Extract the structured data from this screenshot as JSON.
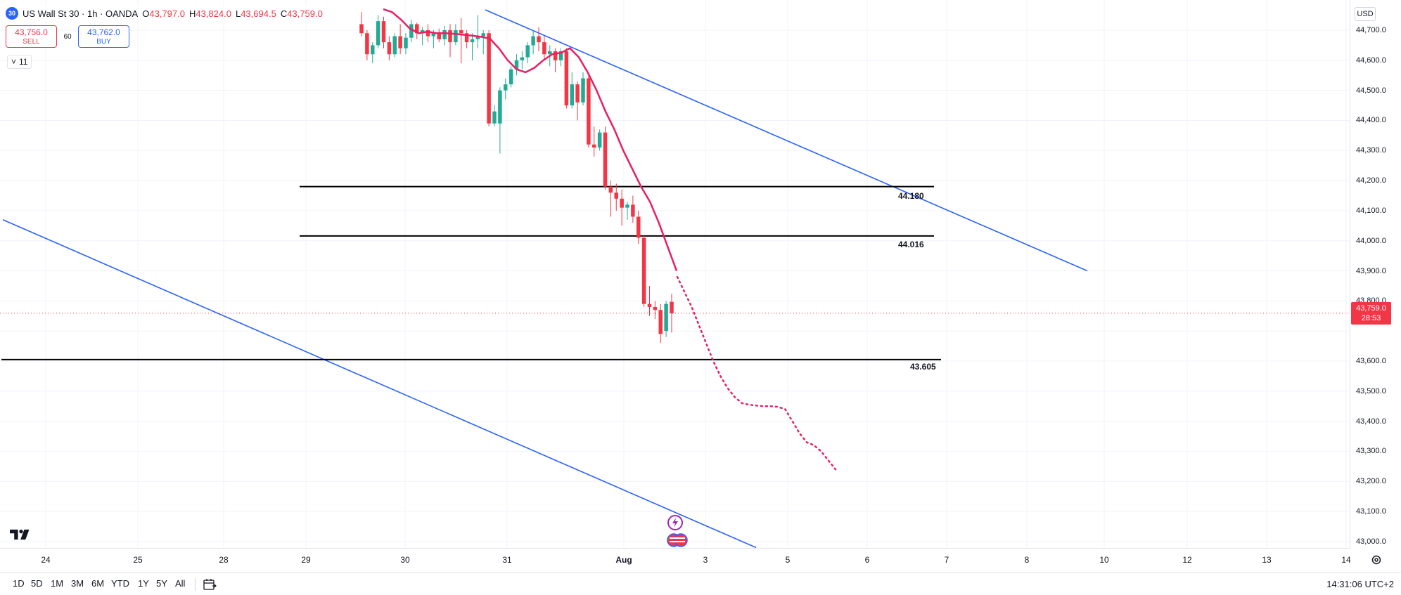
{
  "legend": {
    "logo_text": "30",
    "title": "US Wall St 30 · 1h · OANDA",
    "o_label": "O",
    "o_value": "43,797.0",
    "h_label": "H",
    "h_value": "43,824.0",
    "l_label": "L",
    "l_value": "43,694.5",
    "c_label": "C",
    "c_value": "43,759.0"
  },
  "trade": {
    "sell_price": "43,756.0",
    "sell_label": "SELL",
    "spread": "60",
    "buy_price": "43,762.0",
    "buy_label": "BUY"
  },
  "indicators_toggle": {
    "chevron": "˅",
    "count": "11"
  },
  "price_axis": {
    "currency": "USD",
    "ticks": [
      "44,700.0",
      "44,600.0",
      "44,500.0",
      "44,400.0",
      "44,300.0",
      "44,200.0",
      "44,100.0",
      "44,000.0",
      "43,900.0",
      "43,800.0",
      "43,700.0",
      "43,600.0",
      "43,500.0",
      "43,400.0",
      "43,300.0",
      "43,200.0",
      "43,100.0",
      "43,000.0"
    ],
    "last_price": "43,759.0",
    "countdown": "28:53"
  },
  "time_axis": {
    "ticks": [
      "24",
      "25",
      "28",
      "29",
      "30",
      "31",
      "Aug",
      "3",
      "5",
      "6",
      "7",
      "8",
      "10",
      "12",
      "13",
      "14"
    ]
  },
  "levels": [
    "44.180",
    "44.016",
    "43.605"
  ],
  "bottom_bar": {
    "ranges": [
      "1D",
      "5D",
      "1M",
      "3M",
      "6M",
      "YTD",
      "1Y",
      "5Y",
      "All"
    ],
    "clock": "14:31:06 UTC+2"
  },
  "icons": {
    "settings": "gear-icon",
    "calendar": "calendar-range-icon",
    "logo": "tradingview-logo-icon",
    "events": [
      "lightning-event-icon",
      "us-flag-event-icon"
    ]
  },
  "colors": {
    "up": "#22ab94",
    "down": "#f23645",
    "ema": "#e91e63",
    "channel": "#2962ff",
    "level": "#000000"
  },
  "chart_data": {
    "type": "candlestick",
    "title": "US Wall St 30 · 1h · OANDA",
    "xlabel": "",
    "ylabel": "",
    "ylim": [
      42960,
      44760
    ],
    "grid": true,
    "candles": [
      {
        "t": "Jul 29 21:00",
        "o": 44720,
        "h": 44760,
        "l": 44680,
        "c": 44690
      },
      {
        "t": "Jul 29 22:00",
        "o": 44690,
        "h": 44700,
        "l": 44600,
        "c": 44620
      },
      {
        "t": "Jul 29 23:00",
        "o": 44620,
        "h": 44660,
        "l": 44590,
        "c": 44650
      },
      {
        "t": "Jul 30 00:00",
        "o": 44650,
        "h": 44750,
        "l": 44640,
        "c": 44730
      },
      {
        "t": "Jul 30 01:00",
        "o": 44730,
        "h": 44745,
        "l": 44640,
        "c": 44660
      },
      {
        "t": "Jul 30 02:00",
        "o": 44660,
        "h": 44680,
        "l": 44600,
        "c": 44620
      },
      {
        "t": "Jul 30 03:00",
        "o": 44620,
        "h": 44690,
        "l": 44610,
        "c": 44680
      },
      {
        "t": "Jul 30 04:00",
        "o": 44680,
        "h": 44720,
        "l": 44620,
        "c": 44640
      },
      {
        "t": "Jul 30 05:00",
        "o": 44640,
        "h": 44690,
        "l": 44620,
        "c": 44675
      },
      {
        "t": "Jul 30 06:00",
        "o": 44675,
        "h": 44735,
        "l": 44660,
        "c": 44720
      },
      {
        "t": "Jul 30 07:00",
        "o": 44720,
        "h": 44725,
        "l": 44670,
        "c": 44690
      },
      {
        "t": "Jul 30 08:00",
        "o": 44690,
        "h": 44710,
        "l": 44650,
        "c": 44700
      },
      {
        "t": "Jul 30 09:00",
        "o": 44700,
        "h": 44720,
        "l": 44660,
        "c": 44680
      },
      {
        "t": "Jul 30 10:00",
        "o": 44680,
        "h": 44700,
        "l": 44640,
        "c": 44690
      },
      {
        "t": "Jul 30 11:00",
        "o": 44690,
        "h": 44705,
        "l": 44660,
        "c": 44670
      },
      {
        "t": "Jul 30 12:00",
        "o": 44670,
        "h": 44715,
        "l": 44650,
        "c": 44700
      },
      {
        "t": "Jul 30 13:00",
        "o": 44700,
        "h": 44720,
        "l": 44610,
        "c": 44660
      },
      {
        "t": "Jul 30 14:00",
        "o": 44660,
        "h": 44720,
        "l": 44650,
        "c": 44700
      },
      {
        "t": "Jul 30 15:00",
        "o": 44700,
        "h": 44740,
        "l": 44590,
        "c": 44690
      },
      {
        "t": "Jul 30 16:00",
        "o": 44690,
        "h": 44700,
        "l": 44640,
        "c": 44660
      },
      {
        "t": "Jul 30 17:00",
        "o": 44660,
        "h": 44690,
        "l": 44600,
        "c": 44670
      },
      {
        "t": "Jul 30 18:00",
        "o": 44670,
        "h": 44750,
        "l": 44640,
        "c": 44680
      },
      {
        "t": "Jul 30 19:00",
        "o": 44680,
        "h": 44700,
        "l": 44620,
        "c": 44690
      },
      {
        "t": "Jul 30 20:00",
        "o": 44690,
        "h": 44700,
        "l": 44380,
        "c": 44390
      },
      {
        "t": "Jul 30 21:00",
        "o": 44390,
        "h": 44450,
        "l": 44380,
        "c": 44430
      },
      {
        "t": "Jul 30 22:00",
        "o": 44390,
        "h": 44510,
        "l": 44290,
        "c": 44500
      },
      {
        "t": "Jul 30 23:00",
        "o": 44500,
        "h": 44540,
        "l": 44470,
        "c": 44520
      },
      {
        "t": "Jul 31 00:00",
        "o": 44520,
        "h": 44580,
        "l": 44510,
        "c": 44570
      },
      {
        "t": "Jul 31 01:00",
        "o": 44570,
        "h": 44620,
        "l": 44550,
        "c": 44600
      },
      {
        "t": "Jul 31 02:00",
        "o": 44600,
        "h": 44630,
        "l": 44570,
        "c": 44610
      },
      {
        "t": "Jul 31 03:00",
        "o": 44610,
        "h": 44660,
        "l": 44590,
        "c": 44650
      },
      {
        "t": "Jul 31 04:00",
        "o": 44650,
        "h": 44700,
        "l": 44620,
        "c": 44680
      },
      {
        "t": "Jul 31 05:00",
        "o": 44680,
        "h": 44710,
        "l": 44630,
        "c": 44660
      },
      {
        "t": "Jul 31 06:00",
        "o": 44660,
        "h": 44680,
        "l": 44600,
        "c": 44620
      },
      {
        "t": "Jul 31 07:00",
        "o": 44620,
        "h": 44650,
        "l": 44580,
        "c": 44630
      },
      {
        "t": "Jul 31 08:00",
        "o": 44630,
        "h": 44640,
        "l": 44560,
        "c": 44600
      },
      {
        "t": "Jul 31 09:00",
        "o": 44600,
        "h": 44640,
        "l": 44580,
        "c": 44630
      },
      {
        "t": "Jul 31 10:00",
        "o": 44630,
        "h": 44640,
        "l": 44440,
        "c": 44450
      },
      {
        "t": "Jul 31 11:00",
        "o": 44450,
        "h": 44560,
        "l": 44440,
        "c": 44520
      },
      {
        "t": "Jul 31 12:00",
        "o": 44520,
        "h": 44530,
        "l": 44400,
        "c": 44460
      },
      {
        "t": "Jul 31 13:00",
        "o": 44460,
        "h": 44560,
        "l": 44450,
        "c": 44540
      },
      {
        "t": "Jul 31 14:00",
        "o": 44540,
        "h": 44550,
        "l": 44310,
        "c": 44320
      },
      {
        "t": "Jul 31 15:00",
        "o": 44320,
        "h": 44380,
        "l": 44280,
        "c": 44310
      },
      {
        "t": "Jul 31 16:00",
        "o": 44310,
        "h": 44370,
        "l": 44300,
        "c": 44360
      },
      {
        "t": "Jul 31 17:00",
        "o": 44360,
        "h": 44380,
        "l": 44170,
        "c": 44180
      },
      {
        "t": "Jul 31 18:00",
        "o": 44180,
        "h": 44200,
        "l": 44080,
        "c": 44160
      },
      {
        "t": "Jul 31 19:00",
        "o": 44160,
        "h": 44190,
        "l": 44100,
        "c": 44140
      },
      {
        "t": "Jul 31 20:00",
        "o": 44140,
        "h": 44170,
        "l": 44050,
        "c": 44110
      },
      {
        "t": "Jul 31 21:00",
        "o": 44110,
        "h": 44130,
        "l": 44070,
        "c": 44120
      },
      {
        "t": "Jul 31 22:00",
        "o": 44120,
        "h": 44150,
        "l": 44060,
        "c": 44080
      },
      {
        "t": "Jul 31 23:00",
        "o": 44080,
        "h": 44100,
        "l": 43990,
        "c": 44010
      },
      {
        "t": "Aug 1 00:00",
        "o": 44010,
        "h": 44020,
        "l": 43780,
        "c": 43790
      },
      {
        "t": "Aug 1 01:00",
        "o": 43790,
        "h": 43850,
        "l": 43750,
        "c": 43780
      },
      {
        "t": "Aug 1 02:00",
        "o": 43780,
        "h": 43800,
        "l": 43740,
        "c": 43770
      },
      {
        "t": "Aug 1 03:00",
        "o": 43770,
        "h": 43790,
        "l": 43660,
        "c": 43690
      },
      {
        "t": "Aug 1 04:00",
        "o": 43700,
        "h": 43800,
        "l": 43680,
        "c": 43790
      },
      {
        "t": "Aug 1 05:00",
        "o": 43797,
        "h": 43824,
        "l": 43694.5,
        "c": 43759
      }
    ],
    "ema": [
      44770,
      44760,
      44735,
      44705,
      44690,
      44695,
      44690,
      44690,
      44688,
      44685,
      44682,
      44678,
      44672,
      44640,
      44600,
      44570,
      44560,
      44575,
      44600,
      44620,
      44625,
      44640,
      44610,
      44560,
      44500,
      44430,
      44370,
      44300,
      44240,
      44180,
      44130,
      44060,
      43980,
      43900
    ],
    "projection": [
      43880,
      43830,
      43780,
      43720,
      43660,
      43600,
      43550,
      43510,
      43480,
      43460,
      43455,
      43452,
      43450,
      43450,
      43448,
      43440,
      43400,
      43360,
      43330,
      43320,
      43300,
      43270,
      43240
    ],
    "levels": [
      44180,
      44016,
      43605
    ],
    "channel_upper": {
      "from": [
        "Jul 30 20:00",
        44770
      ],
      "to": [
        "Aug 5 18:00",
        43900
      ]
    },
    "channel_lower": {
      "from": [
        "Jul 24 00:00",
        44070
      ],
      "to": [
        "Aug 4 12:00",
        42980
      ]
    }
  }
}
